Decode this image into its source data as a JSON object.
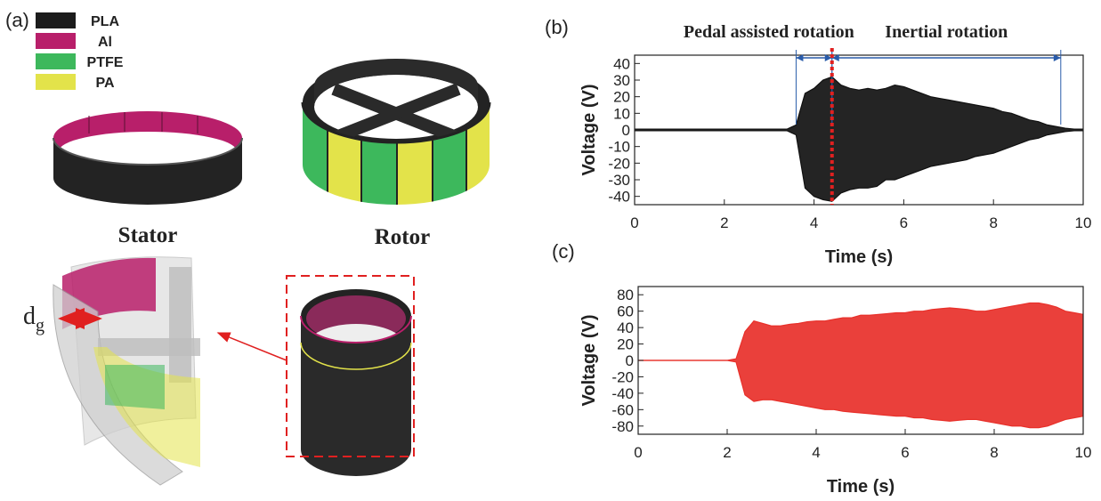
{
  "panel_a": {
    "panel_label": "(a)",
    "legend": [
      {
        "name": "PLA",
        "color": "#1c1c1c"
      },
      {
        "name": "Al",
        "color": "#b81f6a"
      },
      {
        "name": "PTFE",
        "color": "#3db85c"
      },
      {
        "name": "PA",
        "color": "#e3e34a"
      }
    ],
    "stator_label": "Stator",
    "rotor_label": "Rotor",
    "gap_label": "d",
    "gap_subscript": "g"
  },
  "chart_data": [
    {
      "panel_label": "(b)",
      "type": "line",
      "fill_between": true,
      "x": [
        0,
        0.2,
        0.4,
        0.6,
        0.8,
        1,
        1.2,
        1.4,
        1.6,
        1.8,
        2,
        2.2,
        2.4,
        2.6,
        2.8,
        3,
        3.2,
        3.4,
        3.6,
        3.8,
        4,
        4.2,
        4.4,
        4.6,
        4.8,
        5,
        5.2,
        5.4,
        5.6,
        5.8,
        6,
        6.2,
        6.4,
        6.6,
        6.8,
        7,
        7.2,
        7.4,
        7.6,
        7.8,
        8,
        8.2,
        8.4,
        8.6,
        8.8,
        9,
        9.2,
        9.4,
        9.6,
        9.8,
        10
      ],
      "series": [
        {
          "color": "#111111",
          "values": [
            0.5,
            0.5,
            0.5,
            0.5,
            0.5,
            0.5,
            0.5,
            0.5,
            0.5,
            0.5,
            0.5,
            0.5,
            0.5,
            0.5,
            0.5,
            0.5,
            0.5,
            0.5,
            3,
            22,
            25,
            30,
            32,
            27,
            25,
            24,
            25,
            24,
            25,
            27,
            26,
            24,
            22,
            20,
            19,
            18,
            17,
            16,
            15,
            14,
            13,
            11,
            10,
            8,
            6,
            5,
            3,
            2,
            1,
            0.5,
            0.5
          ]
        },
        {
          "color": "#111111",
          "values": [
            -0.5,
            -0.5,
            -0.5,
            -0.5,
            -0.5,
            -0.5,
            -0.5,
            -0.5,
            -0.5,
            -0.5,
            -0.5,
            -0.5,
            -0.5,
            -0.5,
            -0.5,
            -0.5,
            -0.5,
            -0.5,
            -3,
            -35,
            -40,
            -42,
            -43,
            -38,
            -36,
            -35,
            -35,
            -34,
            -30,
            -30,
            -28,
            -26,
            -24,
            -22,
            -21,
            -20,
            -19,
            -18,
            -16,
            -15,
            -14,
            -12,
            -10,
            -8,
            -6,
            -5,
            -3,
            -2,
            -1,
            -0.5,
            -0.5
          ]
        }
      ],
      "xlabel": "Time (s)",
      "ylabel": "Voltage (V)",
      "xlim": [
        0,
        10
      ],
      "ylim": [
        -45,
        45
      ],
      "xticks": [
        0,
        2,
        4,
        6,
        8,
        10
      ],
      "yticks": [
        -40,
        -30,
        -20,
        -10,
        0,
        10,
        20,
        30,
        40
      ],
      "annotations": [
        {
          "text": "Pedal assisted rotation",
          "x_start": 3.6,
          "x_end": 4.4,
          "color": "#2a5caa"
        },
        {
          "text": "Inertial rotation",
          "x_start": 4.4,
          "x_end": 9.5,
          "color": "#2a5caa"
        }
      ],
      "marker_line": {
        "x": 4.4,
        "color": "#e02020"
      }
    },
    {
      "panel_label": "(c)",
      "type": "line",
      "fill_between": true,
      "x": [
        0,
        0.2,
        0.4,
        0.6,
        0.8,
        1,
        1.2,
        1.4,
        1.6,
        1.8,
        2,
        2.2,
        2.4,
        2.6,
        2.8,
        3,
        3.2,
        3.4,
        3.6,
        3.8,
        4,
        4.2,
        4.4,
        4.6,
        4.8,
        5,
        5.2,
        5.4,
        5.6,
        5.8,
        6,
        6.2,
        6.4,
        6.6,
        6.8,
        7,
        7.2,
        7.4,
        7.6,
        7.8,
        8,
        8.2,
        8.4,
        8.6,
        8.8,
        9,
        9.2,
        9.4,
        9.6,
        9.8,
        10
      ],
      "series": [
        {
          "color": "#e8302a",
          "values": [
            0,
            0,
            0,
            0,
            0,
            0,
            0,
            0,
            0,
            0,
            0,
            2,
            35,
            48,
            45,
            42,
            42,
            44,
            45,
            47,
            48,
            48,
            50,
            52,
            52,
            55,
            55,
            56,
            57,
            58,
            58,
            60,
            60,
            62,
            63,
            64,
            63,
            62,
            60,
            60,
            62,
            64,
            66,
            68,
            70,
            70,
            68,
            65,
            60,
            58,
            56
          ]
        },
        {
          "color": "#e8302a",
          "values": [
            0,
            0,
            0,
            0,
            0,
            0,
            0,
            0,
            0,
            0,
            0,
            -2,
            -42,
            -50,
            -48,
            -48,
            -50,
            -52,
            -54,
            -56,
            -58,
            -60,
            -60,
            -62,
            -63,
            -64,
            -65,
            -66,
            -67,
            -68,
            -68,
            -70,
            -70,
            -72,
            -73,
            -74,
            -73,
            -72,
            -72,
            -74,
            -76,
            -78,
            -80,
            -80,
            -82,
            -82,
            -80,
            -76,
            -72,
            -70,
            -68
          ]
        }
      ],
      "xlabel": "Time (s)",
      "ylabel": "Voltage (V)",
      "xlim": [
        0,
        10
      ],
      "ylim": [
        -90,
        90
      ],
      "xticks": [
        0,
        2,
        4,
        6,
        8,
        10
      ],
      "yticks": [
        -80,
        -60,
        -40,
        -20,
        0,
        20,
        40,
        60,
        80
      ]
    }
  ]
}
